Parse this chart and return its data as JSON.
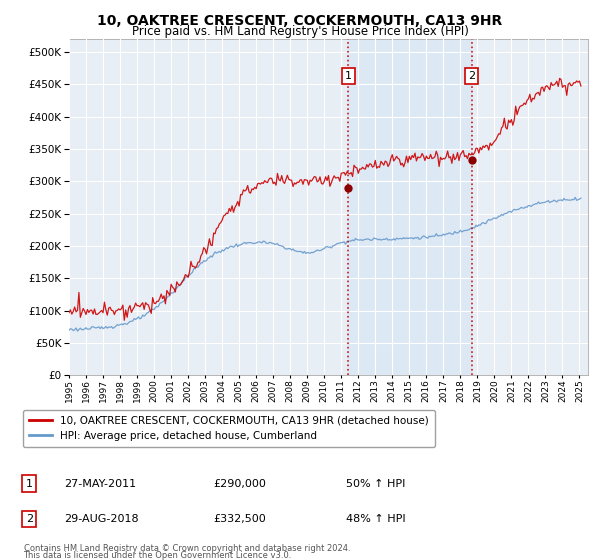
{
  "title": "10, OAKTREE CRESCENT, COCKERMOUTH, CA13 9HR",
  "subtitle": "Price paid vs. HM Land Registry's House Price Index (HPI)",
  "legend_line1": "10, OAKTREE CRESCENT, COCKERMOUTH, CA13 9HR (detached house)",
  "legend_line2": "HPI: Average price, detached house, Cumberland",
  "annotation1_label": "1",
  "annotation1_date": "27-MAY-2011",
  "annotation1_price": "£290,000",
  "annotation1_pct": "50% ↑ HPI",
  "annotation2_label": "2",
  "annotation2_date": "29-AUG-2018",
  "annotation2_price": "£332,500",
  "annotation2_pct": "48% ↑ HPI",
  "footer": "Contains HM Land Registry data © Crown copyright and database right 2024.\nThis data is licensed under the Open Government Licence v3.0.",
  "red_color": "#cc0000",
  "blue_color": "#6699cc",
  "shade_color": "#dde8f5",
  "vline_color": "#cc0000",
  "background_color": "#ffffff",
  "plot_bg_color": "#e8eef5",
  "grid_color": "#ffffff",
  "ylim": [
    0,
    520000
  ],
  "yticks": [
    0,
    50000,
    100000,
    150000,
    200000,
    250000,
    300000,
    350000,
    400000,
    450000,
    500000
  ],
  "sale1_x": 2011.42,
  "sale1_y": 290000,
  "sale2_x": 2018.66,
  "sale2_y": 332500,
  "xmin": 1995,
  "xmax": 2025.5
}
